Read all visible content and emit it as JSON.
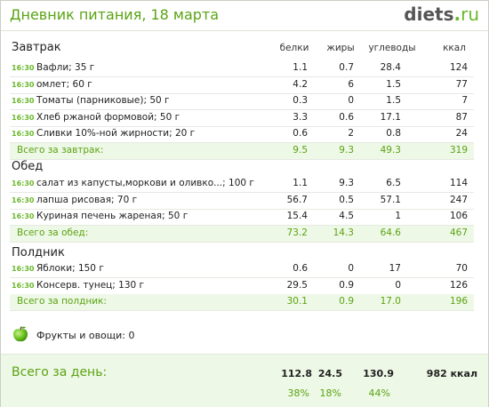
{
  "header": {
    "title": "Дневник питания, 18 марта",
    "brand_main": "diets",
    "brand_dot": ".",
    "brand_tld": "ru"
  },
  "columns": {
    "protein": "белки",
    "fat": "жиры",
    "carbs": "углеводы",
    "kcal": "ккал"
  },
  "sections": {
    "breakfast": {
      "title": "Завтрак",
      "rows": [
        {
          "time": "16:30",
          "name": "Вафли; 35 г",
          "protein": "1.1",
          "fat": "0.7",
          "carbs": "28.4",
          "kcal": "124"
        },
        {
          "time": "16:30",
          "name": "омлет; 60 г",
          "protein": "4.2",
          "fat": "6",
          "carbs": "1.5",
          "kcal": "77"
        },
        {
          "time": "16:30",
          "name": "Томаты (парниковые); 50 г",
          "protein": "0.3",
          "fat": "0",
          "carbs": "1.5",
          "kcal": "7"
        },
        {
          "time": "16:30",
          "name": "Хлеб ржаной формовой; 50 г",
          "protein": "3.3",
          "fat": "0.6",
          "carbs": "17.1",
          "kcal": "87"
        },
        {
          "time": "16:30",
          "name": "Сливки 10%-ной жирности; 20 г",
          "protein": "0.6",
          "fat": "2",
          "carbs": "0.8",
          "kcal": "24"
        }
      ],
      "total": {
        "label": "Всего за завтрак:",
        "protein": "9.5",
        "fat": "9.3",
        "carbs": "49.3",
        "kcal": "319"
      }
    },
    "lunch": {
      "title": "Обед",
      "rows": [
        {
          "time": "16:30",
          "name": "салат из капусты,моркови и оливко...; 100 г",
          "protein": "1.1",
          "fat": "9.3",
          "carbs": "6.5",
          "kcal": "114"
        },
        {
          "time": "16:30",
          "name": "лапша рисовая; 70 г",
          "protein": "56.7",
          "fat": "0.5",
          "carbs": "57.1",
          "kcal": "247"
        },
        {
          "time": "16:30",
          "name": "Куриная печень жареная; 50 г",
          "protein": "15.4",
          "fat": "4.5",
          "carbs": "1",
          "kcal": "106"
        }
      ],
      "total": {
        "label": "Всего за обед:",
        "protein": "73.2",
        "fat": "14.3",
        "carbs": "64.6",
        "kcal": "467"
      }
    },
    "snack": {
      "title": "Полдник",
      "rows": [
        {
          "time": "16:30",
          "name": "Яблоки; 150 г",
          "protein": "0.6",
          "fat": "0",
          "carbs": "17",
          "kcal": "70"
        },
        {
          "time": "16:30",
          "name": "Консерв. тунец; 130 г",
          "protein": "29.5",
          "fat": "0.9",
          "carbs": "0",
          "kcal": "126"
        }
      ],
      "total": {
        "label": "Всего за полдник:",
        "protein": "30.1",
        "fat": "0.9",
        "carbs": "17.0",
        "kcal": "196"
      }
    }
  },
  "fruits": {
    "icon": "apple-icon",
    "text": "Фрукты и овощи: 0"
  },
  "day_total": {
    "label": "Всего за день:",
    "protein": "112.8",
    "fat": "24.5",
    "carbs": "130.9",
    "kcal": "982 ккал",
    "protein_pct": "38%",
    "fat_pct": "18%",
    "carbs_pct": "44%"
  },
  "colors": {
    "accent": "#5aa313",
    "total_bg": "#eef8e6"
  }
}
